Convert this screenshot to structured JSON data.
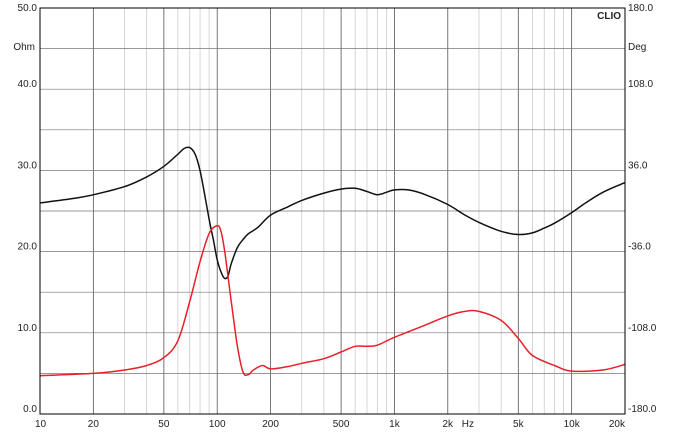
{
  "chart_data": {
    "type": "line",
    "brand": "CLIO",
    "x_scale": "log",
    "xlim": [
      10,
      20000
    ],
    "ylim_left": [
      0,
      50
    ],
    "ylim_right": [
      -180,
      180
    ],
    "left_unit": "Ohm",
    "right_unit": "Deg",
    "x_unit": "Hz",
    "grid": true,
    "x_ticks": [
      {
        "value": 10,
        "label": "10"
      },
      {
        "value": 20,
        "label": "20"
      },
      {
        "value": 50,
        "label": "50"
      },
      {
        "value": 100,
        "label": "100"
      },
      {
        "value": 200,
        "label": "200"
      },
      {
        "value": 500,
        "label": "500"
      },
      {
        "value": 1000,
        "label": "1k"
      },
      {
        "value": 2000,
        "label": "2k"
      },
      {
        "value": 5000,
        "label": "5k"
      },
      {
        "value": 10000,
        "label": "10k"
      },
      {
        "value": 20000,
        "label": "20k"
      }
    ],
    "y_left_ticks": [
      {
        "value": 0,
        "label": "0.0"
      },
      {
        "value": 10,
        "label": "10.0"
      },
      {
        "value": 20,
        "label": "20.0"
      },
      {
        "value": 30,
        "label": "30.0"
      },
      {
        "value": 40,
        "label": "40.0"
      },
      {
        "value": 50,
        "label": "50.0"
      }
    ],
    "y_right_ticks": [
      {
        "value": -180,
        "label": "-180.0"
      },
      {
        "value": -108,
        "label": "-108.0"
      },
      {
        "value": -36,
        "label": "-36.0"
      },
      {
        "value": 36,
        "label": "36.0"
      },
      {
        "value": 108,
        "label": "108.0"
      },
      {
        "value": 180,
        "label": "180.0"
      }
    ],
    "series": [
      {
        "axis": "left",
        "color": "#111111",
        "x": [
          10,
          15,
          20,
          30,
          40,
          50,
          60,
          65,
          70,
          75,
          80,
          85,
          90,
          95,
          100,
          105,
          110,
          115,
          120,
          130,
          140,
          150,
          170,
          200,
          250,
          300,
          400,
          500,
          600,
          700,
          800,
          900,
          1000,
          1200,
          1500,
          2000,
          2500,
          3000,
          4000,
          5000,
          6000,
          7000,
          8000,
          10000,
          12000,
          15000,
          20000
        ],
        "values": [
          26.0,
          26.5,
          27.0,
          28.0,
          29.2,
          30.5,
          32.0,
          32.7,
          32.8,
          32.0,
          30.0,
          27.0,
          24.0,
          21.5,
          19.0,
          17.5,
          16.7,
          17.0,
          18.5,
          20.5,
          21.5,
          22.2,
          23.0,
          24.5,
          25.5,
          26.3,
          27.2,
          27.7,
          27.8,
          27.4,
          27.0,
          27.3,
          27.6,
          27.6,
          27.0,
          25.8,
          24.5,
          23.6,
          22.5,
          22.1,
          22.3,
          22.9,
          23.5,
          24.8,
          26.0,
          27.3,
          28.5
        ]
      },
      {
        "axis": "right",
        "color": "#e8202a",
        "x": [
          10,
          20,
          30,
          40,
          50,
          60,
          70,
          80,
          90,
          100,
          105,
          110,
          120,
          130,
          140,
          150,
          160,
          180,
          200,
          250,
          300,
          400,
          500,
          600,
          700,
          800,
          1000,
          1500,
          2000,
          2500,
          3000,
          4000,
          5000,
          6000,
          8000,
          10000,
          15000,
          20000
        ],
        "values": [
          -146,
          -144,
          -141,
          -137,
          -130,
          -115,
          -80,
          -45,
          -20,
          -13,
          -18,
          -35,
          -80,
          -120,
          -143,
          -145,
          -141,
          -137,
          -140,
          -138,
          -135,
          -131,
          -125,
          -120,
          -120,
          -119,
          -112,
          -101,
          -93,
          -89,
          -89,
          -97,
          -113,
          -128,
          -137,
          -142,
          -141,
          -136
        ]
      }
    ]
  }
}
